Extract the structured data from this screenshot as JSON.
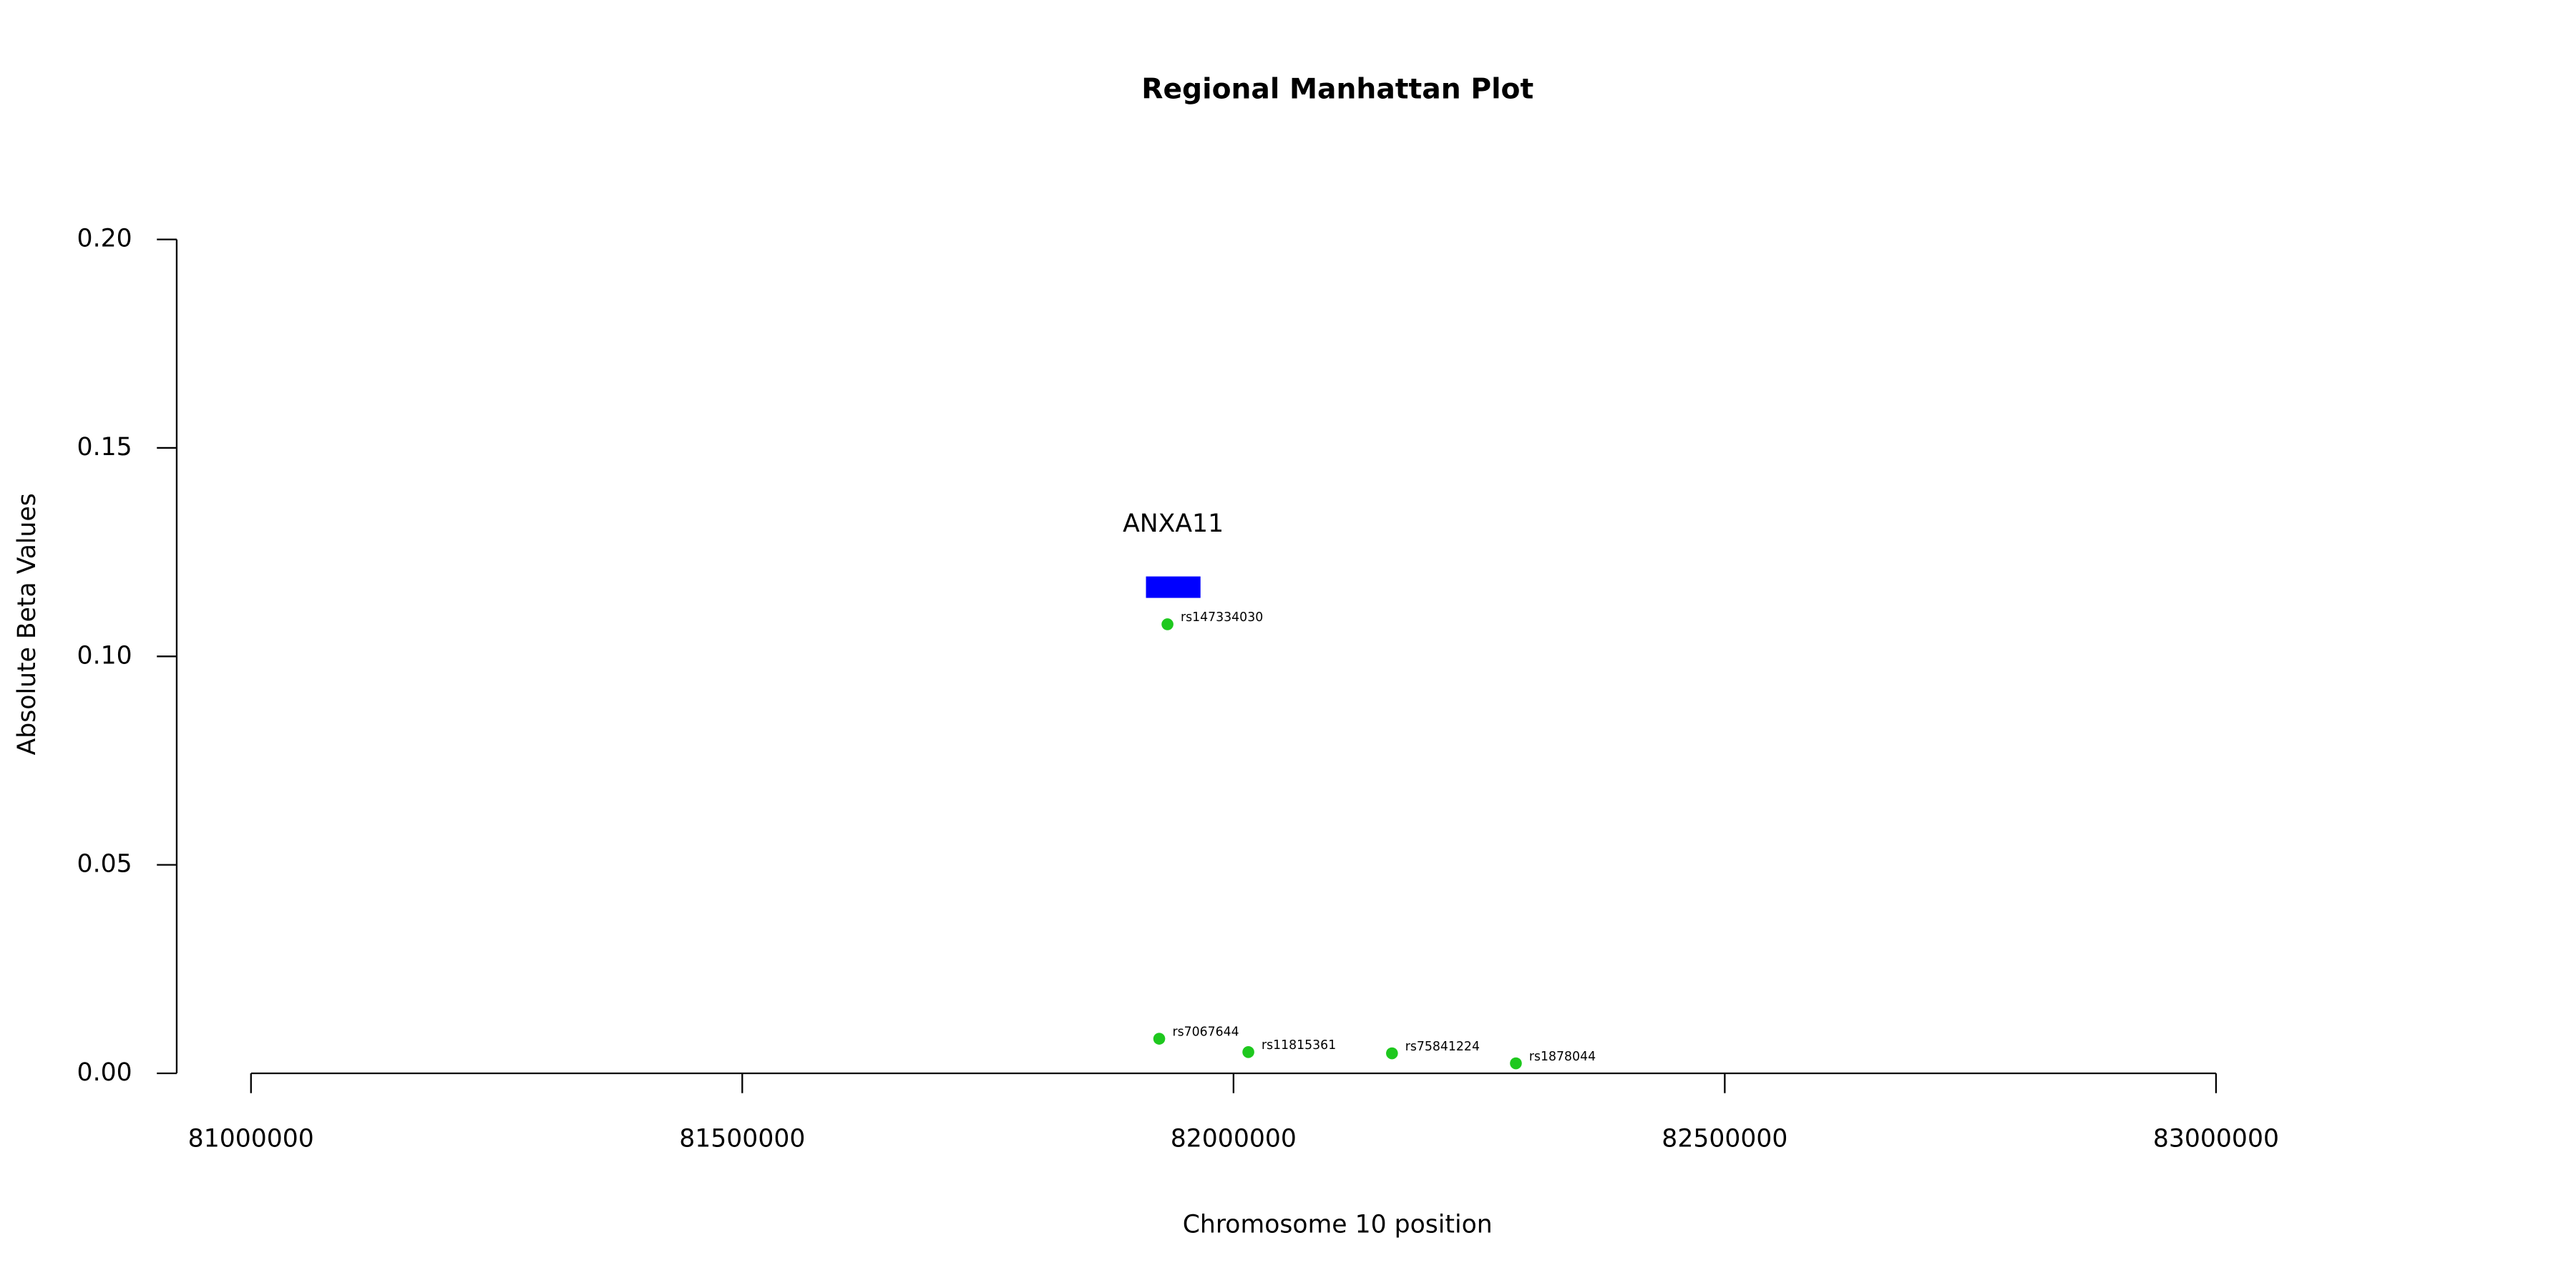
{
  "chart_data": {
    "type": "scatter",
    "title": "Regional Manhattan Plot",
    "x_label": "Chromosome 10 position",
    "y_label": "Absolute Beta Values",
    "x": [
      81932800,
      81924400,
      82015100,
      82161300,
      82287400
    ],
    "values": [
      0.1077,
      0.0083,
      0.0051,
      0.0048,
      0.0024
    ],
    "point_labels": [
      "rs147334030",
      "rs7067644",
      "rs11815361",
      "rs75841224",
      "rs1878044"
    ],
    "color": "#1ec81e",
    "genes": [
      {
        "name": "ANXA11",
        "start": 81910900,
        "end": 81966400,
        "y": 0.1166,
        "color": "#0000ff"
      }
    ],
    "xlim": [
      81000000,
      83000000
    ],
    "ylim": [
      0,
      0.2
    ],
    "xticks": [
      81000000,
      81500000,
      82000000,
      82500000,
      83000000
    ],
    "yticks": [
      {
        "value": 0,
        "label": "0.00"
      },
      0.05,
      {
        "value": 0.1,
        "label": "0.10"
      },
      0.15,
      {
        "value": 0.2,
        "label": "0.20"
      }
    ]
  }
}
